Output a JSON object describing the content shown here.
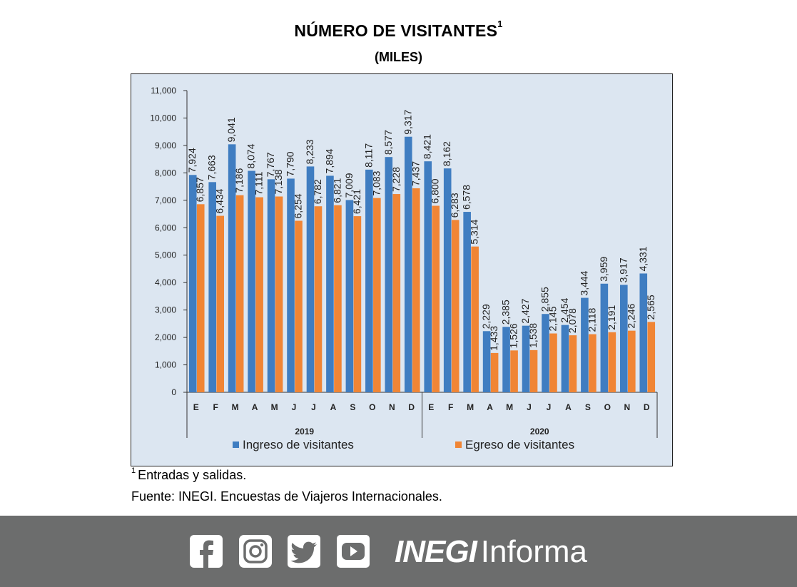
{
  "header": {
    "title": "NÚMERO DE VISITANTES",
    "title_sup": "1",
    "subtitle": "(MILES)"
  },
  "chart_data": {
    "type": "bar",
    "title": "NÚMERO DE VISITANTES",
    "subtitle": "(MILES)",
    "categories": [
      "E",
      "F",
      "M",
      "A",
      "M",
      "J",
      "J",
      "A",
      "S",
      "O",
      "N",
      "D",
      "E",
      "F",
      "M",
      "A",
      "M",
      "J",
      "J",
      "A",
      "S",
      "O",
      "N",
      "D"
    ],
    "year_groups": [
      {
        "label": "2019",
        "start": 0,
        "end": 11
      },
      {
        "label": "2020",
        "start": 12,
        "end": 23
      }
    ],
    "series": [
      {
        "name": "Ingreso de visitantes",
        "color": "#3f7dc1",
        "values": [
          7924,
          7663,
          9041,
          8074,
          7767,
          7790,
          8233,
          7894,
          7009,
          8117,
          8577,
          9317,
          8421,
          8162,
          6578,
          2229,
          2385,
          2427,
          2855,
          2454,
          3444,
          3959,
          3917,
          4331
        ]
      },
      {
        "name": "Egreso de visitantes",
        "color": "#f08535",
        "values": [
          6857,
          6434,
          7186,
          7111,
          7138,
          6254,
          6782,
          6821,
          6421,
          7083,
          7228,
          7437,
          6800,
          6283,
          5314,
          1433,
          1526,
          1538,
          2145,
          2078,
          2118,
          2191,
          2246,
          2565
        ]
      }
    ],
    "ylim": [
      0,
      11000
    ],
    "yticks": [
      0,
      1000,
      2000,
      3000,
      4000,
      5000,
      6000,
      7000,
      8000,
      9000,
      10000,
      11000
    ],
    "ytick_labels": [
      "0",
      "1,000",
      "2,000",
      "3,000",
      "4,000",
      "5,000",
      "6,000",
      "7,000",
      "8,000",
      "9,000",
      "10,000",
      "11,000"
    ],
    "legend_position": "bottom",
    "plot_background": "#dce6f1"
  },
  "notes": {
    "footnote_sup": "1",
    "footnote": "Entradas y salidas.",
    "source": "Fuente: INEGI. Encuestas de Viajeros Internacionales."
  },
  "footer": {
    "background": "#6c6d6d",
    "social_icons": [
      "facebook-icon",
      "instagram-icon",
      "twitter-icon",
      "youtube-icon"
    ],
    "brand_strong": "INEGI",
    "brand_light": "Informa"
  }
}
